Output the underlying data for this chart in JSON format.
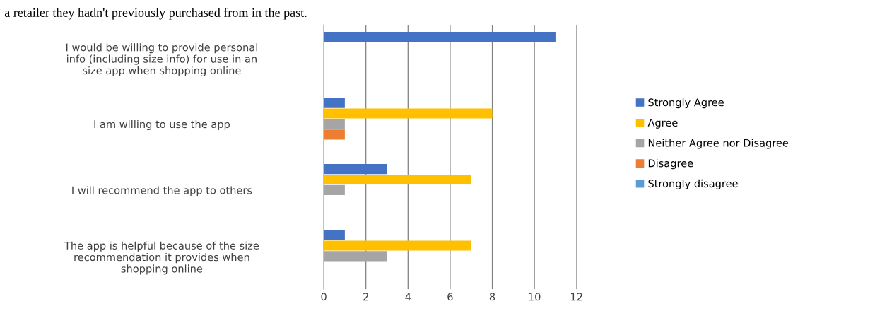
{
  "chart_data": {
    "type": "bar",
    "orientation": "horizontal",
    "categories": [
      "I would be willing to provide personal\ninfo (including size info) for use in an\nsize app when shopping online",
      "I am willing to use the app",
      "I will recommend the app to others",
      "The app is helpful because of the size\nrecommendation it provides when\nshopping online"
    ],
    "series": [
      {
        "name": "Strongly Agree",
        "color": "#4472c4",
        "values": [
          11,
          1,
          3,
          1
        ]
      },
      {
        "name": "Agree",
        "color": "#ffc000",
        "values": [
          0,
          8,
          7,
          7
        ]
      },
      {
        "name": "Neither Agree nor Disagree",
        "color": "#a5a5a5",
        "values": [
          0,
          1,
          1,
          3
        ]
      },
      {
        "name": "Disagree",
        "color": "#ed7d31",
        "values": [
          0,
          1,
          0,
          0
        ]
      },
      {
        "name": "Strongly disagree",
        "color": "#5b9bd5",
        "values": [
          0,
          0,
          0,
          0
        ]
      }
    ],
    "xlim": [
      0,
      12
    ],
    "xticks": [
      0,
      2,
      4,
      6,
      8,
      10,
      12
    ],
    "grid": "x",
    "legend": "right",
    "annotations": [
      "a retailer they hadn't previously purchased from in the past."
    ]
  }
}
